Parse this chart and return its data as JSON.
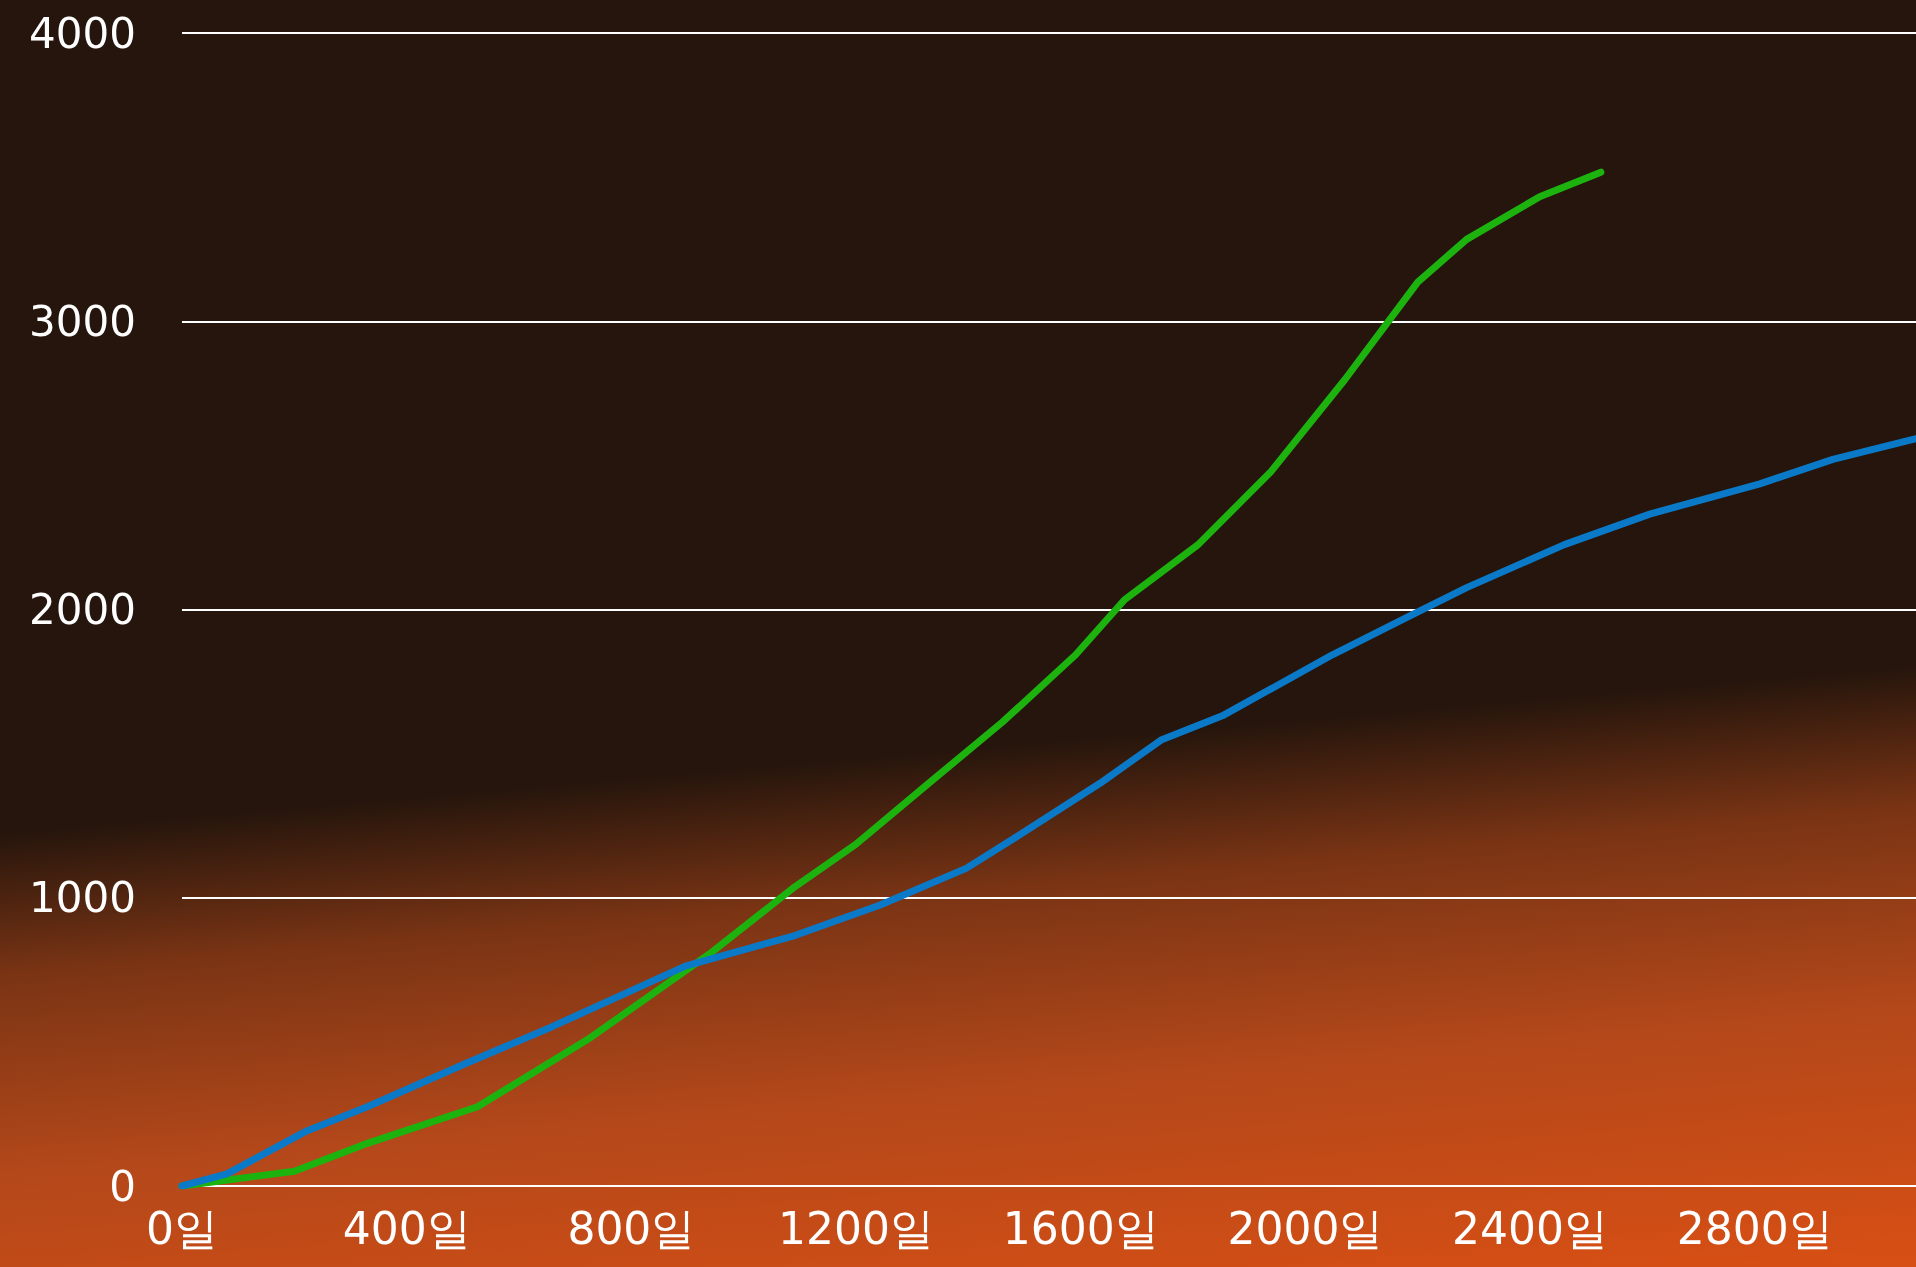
{
  "chart_data": {
    "type": "line",
    "xlim": [
      0,
      3087
    ],
    "xticks": [
      {
        "value": 0,
        "label": "0일"
      },
      {
        "value": 400,
        "label": "400일"
      },
      {
        "value": 800,
        "label": "800일"
      },
      {
        "value": 1200,
        "label": "1200일"
      },
      {
        "value": 1600,
        "label": "1600일"
      },
      {
        "value": 2000,
        "label": "2000일"
      },
      {
        "value": 2400,
        "label": "2400일"
      },
      {
        "value": 2800,
        "label": "2800일"
      }
    ],
    "ylim": [
      0,
      4000
    ],
    "yticks": [
      0,
      1000,
      2000,
      3000,
      4000
    ],
    "grid": "y",
    "marker": "none",
    "line_style": "solid",
    "series": [
      {
        "color": "#1db30f",
        "x": [
          0,
          200,
          330,
          526,
          722,
          939,
          1091,
          1200,
          1330,
          1461,
          1591,
          1678,
          1809,
          1939,
          2070,
          2200,
          2287,
          2417,
          2526
        ],
        "values": [
          0,
          51,
          148,
          275,
          508,
          805,
          1038,
          1186,
          1398,
          1610,
          1843,
          2034,
          2225,
          2479,
          2797,
          3136,
          3284,
          3432,
          3517
        ]
      },
      {
        "color": "#0a7ac8",
        "x": [
          0,
          80,
          222,
          330,
          504,
          657,
          896,
          1091,
          1243,
          1396,
          1483,
          1635,
          1743,
          1852,
          2048,
          2178,
          2287,
          2461,
          2613,
          2809,
          2939,
          3087
        ],
        "values": [
          0,
          42,
          191,
          275,
          424,
          551,
          763,
          869,
          975,
          1102,
          1208,
          1398,
          1547,
          1631,
          1843,
          1970,
          2076,
          2225,
          2331,
          2436,
          2521,
          2593
        ]
      }
    ]
  }
}
